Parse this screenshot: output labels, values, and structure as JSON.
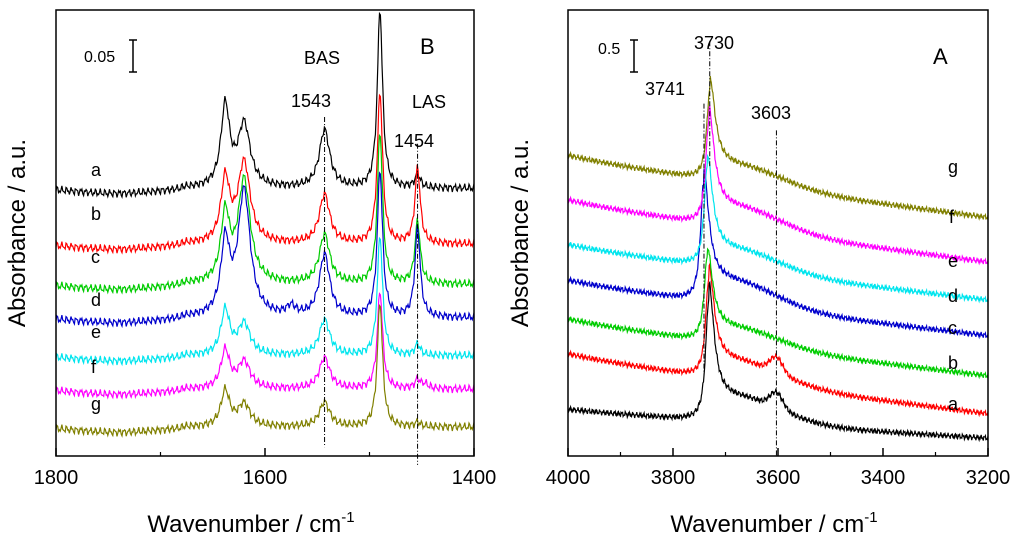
{
  "chart_data": [
    {
      "panel": "B",
      "type": "line",
      "panel_label": "B",
      "xlabel": "Wavenumber / cm",
      "xlabel_sup": "-1",
      "ylabel": "Absorbance / a.u.",
      "x_reversed": true,
      "xlim": [
        1400,
        1800
      ],
      "xticks": [
        1800,
        1600,
        1400
      ],
      "ylim": [
        0,
        1
      ],
      "scale_bar": {
        "label": "0.05",
        "value": 0.05
      },
      "annotations": [
        {
          "text": "BAS",
          "x": 1543,
          "level": 0.93
        },
        {
          "text": "1543",
          "x": 1543,
          "level": 0.82
        },
        {
          "text": "LAS",
          "x": 1454,
          "level": 0.85
        },
        {
          "text": "1454",
          "x": 1454,
          "level": 0.75
        }
      ],
      "reference_lines": [
        {
          "x": 1543,
          "from": 0.76,
          "to": 0.02
        },
        {
          "x": 1454,
          "from": 0.7,
          "to": -0.02
        }
      ],
      "peaks_cm": [
        1638,
        1620,
        1575,
        1543,
        1490,
        1454,
        1447
      ],
      "series": [
        {
          "name": "a",
          "color": "#000000",
          "baseline": 0.6,
          "peaks": [
            0.18,
            0.14,
            0.0,
            0.13,
            0.4,
            0.03,
            0.0
          ]
        },
        {
          "name": "b",
          "color": "#ff0000",
          "baseline": 0.475,
          "peaks": [
            0.14,
            0.18,
            0.0,
            0.11,
            0.34,
            0.17,
            0.0
          ]
        },
        {
          "name": "c",
          "color": "#00cc00",
          "baseline": 0.385,
          "peaks": [
            0.15,
            0.23,
            0.0,
            0.11,
            0.34,
            0.14,
            0.0
          ]
        },
        {
          "name": "d",
          "color": "#0000cc",
          "baseline": 0.31,
          "peaks": [
            0.16,
            0.28,
            0.02,
            0.14,
            0.33,
            0.2,
            0.0
          ]
        },
        {
          "name": "e",
          "color": "#00e5ee",
          "baseline": 0.225,
          "peaks": [
            0.1,
            0.07,
            0.0,
            0.08,
            0.27,
            0.025,
            0.0
          ]
        },
        {
          "name": "f",
          "color": "#ff00ff",
          "baseline": 0.15,
          "peaks": [
            0.085,
            0.06,
            0.0,
            0.07,
            0.22,
            0.02,
            0.01
          ]
        },
        {
          "name": "g",
          "color": "#808000",
          "baseline": 0.065,
          "peaks": [
            0.08,
            0.05,
            0.0,
            0.055,
            0.28,
            0.01,
            0.0
          ]
        }
      ]
    },
    {
      "panel": "A",
      "type": "line",
      "panel_label": "A",
      "xlabel": "Wavenumber / cm",
      "xlabel_sup": "-1",
      "ylabel": "Absorbance / a.u.",
      "x_reversed": true,
      "xlim": [
        3200,
        4000
      ],
      "xticks": [
        4000,
        3800,
        3600,
        3400,
        3200
      ],
      "ylim": [
        0,
        1
      ],
      "scale_bar": {
        "label": "0.5",
        "value": 0.5
      },
      "annotations": [
        {
          "text": "3730",
          "x": 3730,
          "level": 0.97
        },
        {
          "text": "3741",
          "x": 3741,
          "level": 0.83
        },
        {
          "text": "3603",
          "x": 3603,
          "level": 0.77
        }
      ],
      "reference_lines": [
        {
          "x": 3730,
          "from": 0.93,
          "to": 0.65
        },
        {
          "x": 3741,
          "from": 0.79,
          "to": 0.18
        },
        {
          "x": 3603,
          "from": 0.73,
          "to": 0.0
        }
      ],
      "series": [
        {
          "name": "a",
          "color": "#000000",
          "start": 0.105,
          "end": 0.04,
          "peak_x": 3732,
          "peak_height": 0.27,
          "shoulder": 0.035,
          "dip": 0.0
        },
        {
          "name": "b",
          "color": "#ff0000",
          "start": 0.23,
          "end": 0.095,
          "peak_x": 3732,
          "peak_height": 0.22,
          "shoulder": 0.035,
          "dip": 0.0
        },
        {
          "name": "c",
          "color": "#00cc00",
          "start": 0.308,
          "end": 0.18,
          "peak_x": 3735,
          "peak_height": 0.185,
          "shoulder": 0.0,
          "dip": 0.0
        },
        {
          "name": "d",
          "color": "#0000cc",
          "start": 0.395,
          "end": 0.27,
          "peak_x": 3742,
          "peak_height": 0.26,
          "shoulder": 0.0,
          "dip": 0.0
        },
        {
          "name": "e",
          "color": "#00e5ee",
          "start": 0.475,
          "end": 0.35,
          "peak_x": 3735,
          "peak_height": 0.22,
          "shoulder": 0.0,
          "dip": 0.0
        },
        {
          "name": "f",
          "color": "#ff00ff",
          "start": 0.575,
          "end": 0.435,
          "peak_x": 3732,
          "peak_height": 0.23,
          "shoulder": 0.0,
          "dip": 0.0
        },
        {
          "name": "g",
          "color": "#808000",
          "start": 0.675,
          "end": 0.535,
          "peak_x": 3730,
          "peak_height": 0.2,
          "shoulder": 0.0,
          "dip": 0.0
        }
      ]
    }
  ]
}
